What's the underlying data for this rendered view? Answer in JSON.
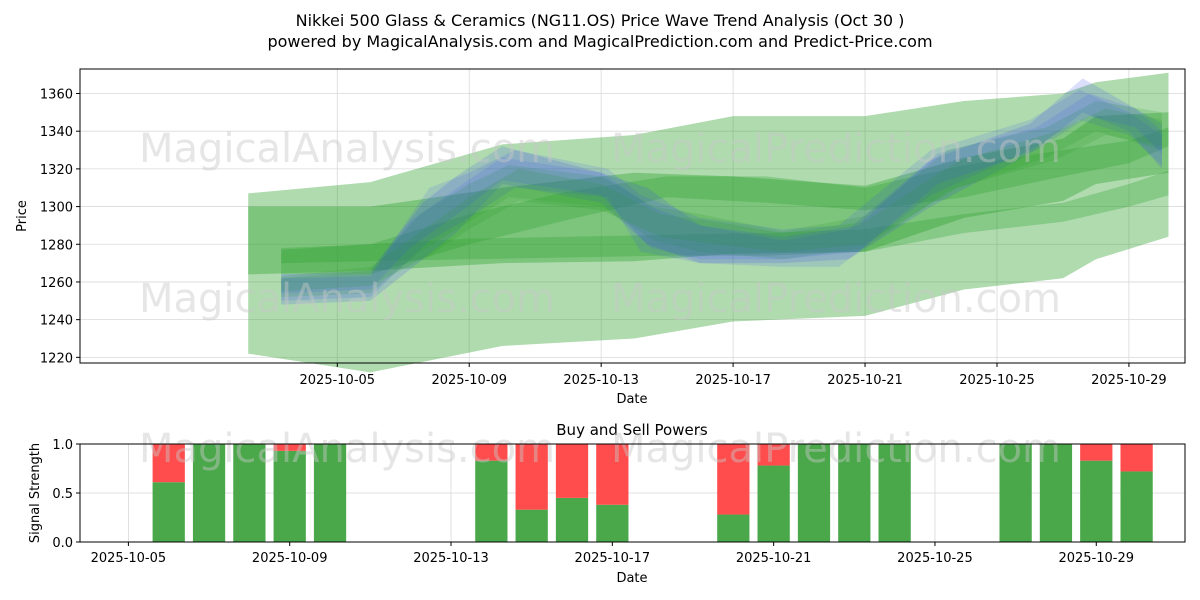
{
  "title_line1": "Nikkei 500 Glass & Ceramics (NG11.OS) Price Wave Trend Analysis (Oct 30 )",
  "title_line2": "powered by MagicalAnalysis.com and MagicalPrediction.com and Predict-Price.com",
  "watermarks": [
    "MagicalAnalysis.com",
    "MagicalPrediction.com"
  ],
  "colors": {
    "green_band": "#2ca02c",
    "blue_band": "#3b4ef0",
    "buy": "#4aa84a",
    "sell": "#ff4c4c",
    "grid": "#d9d9d9"
  },
  "chart_data": [
    {
      "type": "area",
      "title": "",
      "xlabel": "Date",
      "ylabel": "Price",
      "ylim": [
        1217,
        1373
      ],
      "xlim_days": [
        -2.8,
        30.7
      ],
      "x_ticks": [
        {
          "day": 5,
          "label": "2025-10-05"
        },
        {
          "day": 9,
          "label": "2025-10-09"
        },
        {
          "day": 13,
          "label": "2025-10-13"
        },
        {
          "day": 17,
          "label": "2025-10-17"
        },
        {
          "day": 21,
          "label": "2025-10-21"
        },
        {
          "day": 25,
          "label": "2025-10-25"
        },
        {
          "day": 29,
          "label": "2025-10-29"
        }
      ],
      "y_ticks": [
        1220,
        1240,
        1260,
        1280,
        1300,
        1320,
        1340,
        1360
      ],
      "grid": true,
      "series": [
        {
          "name": "wide-band",
          "color": "green",
          "opacity": 0.38,
          "x": [
            2.3,
            6,
            10,
            14,
            17,
            21,
            24,
            27,
            28,
            30.2
          ],
          "upper": [
            1307,
            1313,
            1333,
            1338,
            1348,
            1348,
            1356,
            1360,
            1366,
            1371
          ],
          "lower": [
            1222,
            1212,
            1226,
            1230,
            1239,
            1242,
            1256,
            1262,
            1272,
            1284
          ]
        },
        {
          "name": "mid-band",
          "color": "green",
          "opacity": 0.38,
          "x": [
            2.3,
            6,
            10,
            14,
            17,
            21,
            24,
            27,
            28,
            30.2
          ],
          "upper": [
            1300,
            1300,
            1310,
            1318,
            1316,
            1311,
            1326,
            1336,
            1348,
            1350
          ],
          "lower": [
            1264,
            1266,
            1270,
            1271,
            1275,
            1276,
            1294,
            1303,
            1312,
            1318
          ]
        },
        {
          "name": "upper-channel",
          "color": "green",
          "opacity": 0.3,
          "x": [
            3.3,
            6,
            9,
            12,
            15,
            18,
            21,
            24,
            27,
            29,
            30.2
          ],
          "upper": [
            1277,
            1280,
            1296,
            1308,
            1316,
            1316,
            1310,
            1322,
            1330,
            1335,
            1342
          ],
          "lower": [
            1264,
            1264,
            1280,
            1293,
            1305,
            1302,
            1298,
            1305,
            1316,
            1323,
            1332
          ]
        },
        {
          "name": "lower-channel",
          "color": "green",
          "opacity": 0.3,
          "x": [
            3.3,
            6,
            9,
            12,
            15,
            18,
            21,
            24,
            27,
            29,
            30.2
          ],
          "upper": [
            1278,
            1280,
            1283,
            1284,
            1285,
            1286,
            1288,
            1296,
            1302,
            1312,
            1319
          ],
          "lower": [
            1270,
            1271,
            1272,
            1273,
            1274,
            1274,
            1276,
            1286,
            1292,
            1300,
            1306
          ]
        },
        {
          "name": "wave-1",
          "color": "blue",
          "opacity": 0.18,
          "x": [
            3.3,
            6,
            7.6,
            8.6,
            10,
            13,
            14.4,
            16,
            18.5,
            20.5,
            23,
            26,
            27.6,
            29,
            30
          ],
          "upper": [
            1264,
            1266,
            1302,
            1316,
            1332,
            1318,
            1310,
            1290,
            1282,
            1288,
            1325,
            1344,
            1368,
            1354,
            1344
          ],
          "lower": [
            1248,
            1250,
            1272,
            1286,
            1312,
            1302,
            1280,
            1270,
            1270,
            1272,
            1300,
            1328,
            1350,
            1340,
            1320
          ]
        },
        {
          "name": "wave-2",
          "color": "green",
          "opacity": 0.2,
          "x": [
            3.3,
            6,
            7.5,
            9,
            10.2,
            13,
            14.6,
            16,
            18.5,
            21,
            23.5,
            26.5,
            28,
            30
          ],
          "upper": [
            1262,
            1266,
            1296,
            1312,
            1322,
            1316,
            1300,
            1296,
            1287,
            1295,
            1330,
            1342,
            1356,
            1350
          ],
          "lower": [
            1252,
            1254,
            1276,
            1292,
            1305,
            1300,
            1282,
            1276,
            1272,
            1278,
            1308,
            1326,
            1340,
            1330
          ]
        },
        {
          "name": "wave-3",
          "color": "blue",
          "opacity": 0.15,
          "x": [
            3.3,
            6,
            7.8,
            9,
            10.4,
            13.2,
            14.2,
            16,
            18.5,
            20.2,
            23,
            26,
            27.5,
            29,
            30
          ],
          "upper": [
            1264,
            1264,
            1310,
            1318,
            1330,
            1320,
            1306,
            1294,
            1288,
            1290,
            1330,
            1346,
            1362,
            1350,
            1338
          ],
          "lower": [
            1250,
            1252,
            1282,
            1294,
            1310,
            1305,
            1276,
            1270,
            1268,
            1268,
            1306,
            1330,
            1346,
            1338,
            1322
          ]
        },
        {
          "name": "wave-4",
          "color": "green",
          "opacity": 0.2,
          "x": [
            3.3,
            6,
            7.8,
            9,
            10.5,
            13,
            14.8,
            16.5,
            18.5,
            21,
            23.8,
            26.8,
            28.3,
            30
          ],
          "upper": [
            1263,
            1268,
            1290,
            1305,
            1320,
            1312,
            1296,
            1292,
            1286,
            1292,
            1324,
            1340,
            1352,
            1346
          ],
          "lower": [
            1255,
            1258,
            1274,
            1288,
            1303,
            1298,
            1284,
            1280,
            1276,
            1280,
            1310,
            1325,
            1338,
            1332
          ]
        },
        {
          "name": "wave-5",
          "color": "blue",
          "opacity": 0.14,
          "x": [
            3.3,
            6,
            7.2,
            8.8,
            10,
            13,
            14.5,
            16,
            18.5,
            20.8,
            23.2,
            26.2,
            27.8,
            29.2,
            30
          ],
          "upper": [
            1262,
            1263,
            1292,
            1312,
            1326,
            1318,
            1300,
            1290,
            1284,
            1290,
            1328,
            1342,
            1360,
            1352,
            1340
          ],
          "lower": [
            1254,
            1256,
            1278,
            1298,
            1314,
            1306,
            1278,
            1272,
            1272,
            1276,
            1312,
            1330,
            1348,
            1342,
            1328
          ]
        }
      ]
    },
    {
      "type": "bar",
      "title": "Buy and Sell Powers",
      "xlabel": "Date",
      "ylabel": "Signal Strength",
      "ylim": [
        0,
        1
      ],
      "xlim_days": [
        3.8,
        31.2
      ],
      "x_ticks": [
        {
          "day": 5,
          "label": "2025-10-05"
        },
        {
          "day": 9,
          "label": "2025-10-09"
        },
        {
          "day": 13,
          "label": "2025-10-13"
        },
        {
          "day": 17,
          "label": "2025-10-17"
        },
        {
          "day": 21,
          "label": "2025-10-21"
        },
        {
          "day": 25,
          "label": "2025-10-25"
        },
        {
          "day": 29,
          "label": "2025-10-29"
        }
      ],
      "y_ticks": [
        {
          "v": 0,
          "label": "0.0"
        },
        {
          "v": 0.5,
          "label": "0.5"
        },
        {
          "v": 1,
          "label": "1.0"
        }
      ],
      "grid": true,
      "days": [
        6,
        7,
        8,
        9,
        10,
        14,
        15,
        16,
        17,
        20,
        21,
        22,
        23,
        24,
        27,
        28,
        29,
        30
      ],
      "buy": [
        0.61,
        1.0,
        1.0,
        0.93,
        1.0,
        0.83,
        0.33,
        0.45,
        0.38,
        0.28,
        0.78,
        1.0,
        1.0,
        1.0,
        1.0,
        1.0,
        0.83,
        0.72
      ],
      "sell": [
        0.39,
        0.0,
        0.0,
        0.07,
        0.0,
        0.17,
        0.67,
        0.55,
        0.62,
        0.72,
        0.22,
        0.0,
        0.0,
        0.0,
        0.0,
        0.0,
        0.17,
        0.28
      ]
    }
  ]
}
